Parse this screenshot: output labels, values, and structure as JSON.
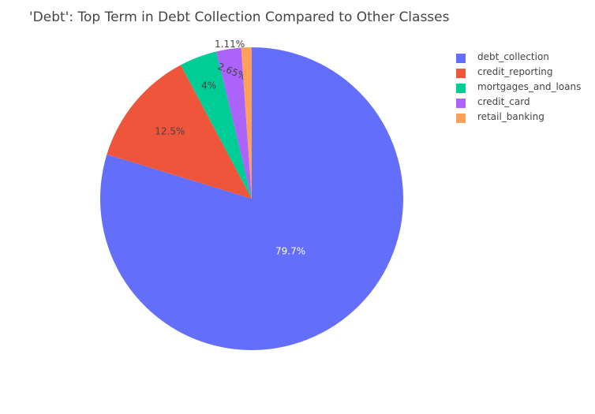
{
  "chart_data": {
    "type": "pie",
    "title": "'Debt': Top Term in Debt Collection Compared to Other Classes",
    "labels": [
      "debt_collection",
      "credit_reporting",
      "mortgages_and_loans",
      "credit_card",
      "retail_banking"
    ],
    "values": [
      79.7,
      12.5,
      4,
      2.65,
      1.11
    ],
    "value_labels": [
      "79.7%",
      "12.5%",
      "4%",
      "2.65%",
      "1.11%"
    ],
    "colors": [
      "#636efa",
      "#ef553b",
      "#00cc96",
      "#ab63fa",
      "#ffa15a"
    ],
    "direction": "clockwise",
    "start": "12 o'clock",
    "legend_position": "top-right"
  }
}
